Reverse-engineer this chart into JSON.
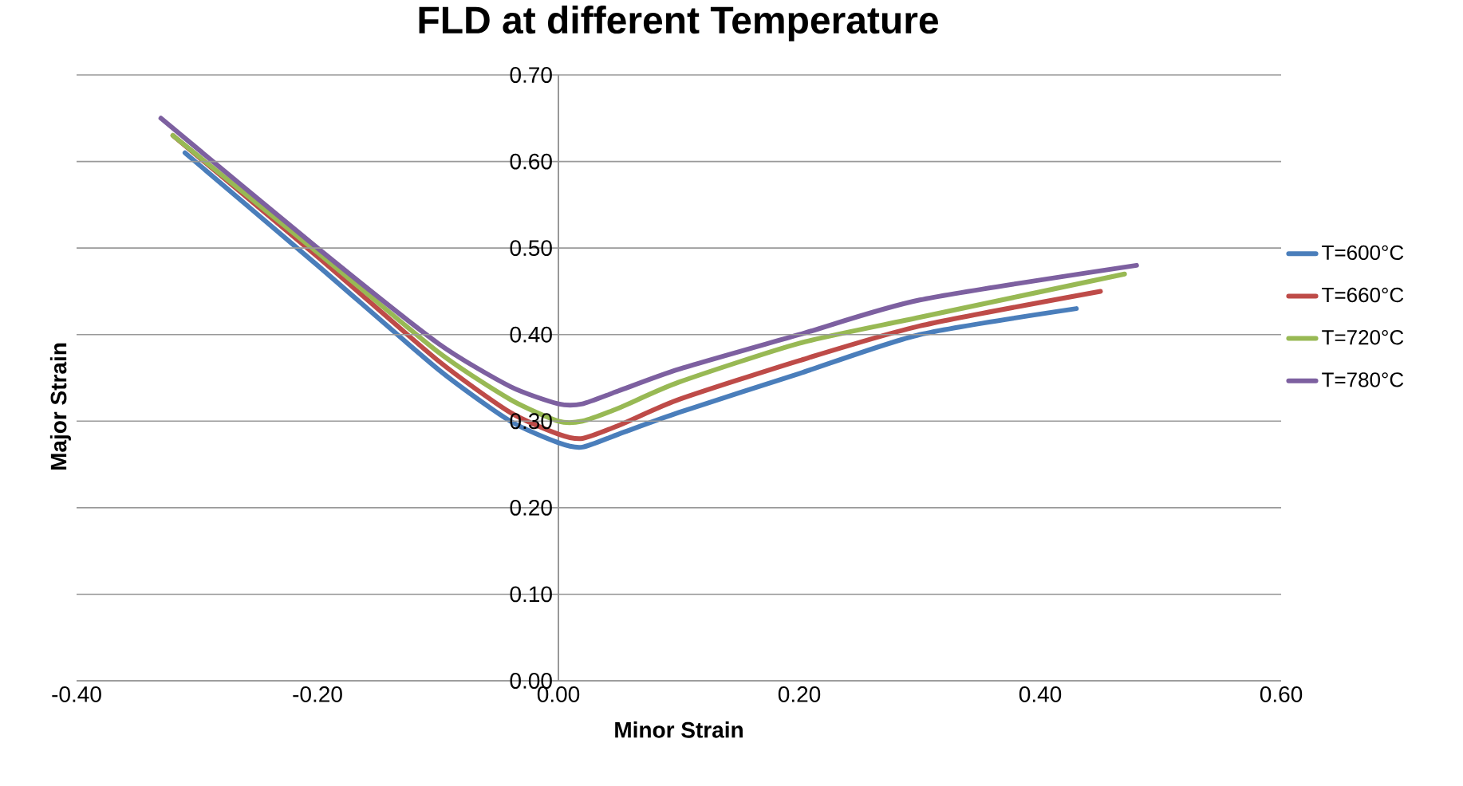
{
  "chart_data": {
    "type": "line",
    "title": "FLD at different Temperature",
    "xlabel": "Minor Strain",
    "ylabel": "Major Strain",
    "xlim": [
      -0.4,
      0.6
    ],
    "xticks": [
      {
        "value": -0.4,
        "label": "-0.40"
      },
      {
        "value": -0.2,
        "label": "-0.20"
      },
      {
        "value": 0,
        "label": "0.00"
      },
      {
        "value": 0.2,
        "label": "0.20"
      },
      {
        "value": 0.4,
        "label": "0.40"
      },
      {
        "value": 0.6,
        "label": "0.60"
      }
    ],
    "ylim": [
      0,
      0.7
    ],
    "yticks": [
      {
        "value": 0,
        "label": "0.00"
      },
      {
        "value": 0.1,
        "label": "0.10"
      },
      {
        "value": 0.2,
        "label": "0.20"
      },
      {
        "value": 0.3,
        "label": "0.30"
      },
      {
        "value": 0.4,
        "label": "0.40"
      },
      {
        "value": 0.5,
        "label": "0.50"
      },
      {
        "value": 0.6,
        "label": "0.60"
      },
      {
        "value": 0.7,
        "label": "0.70"
      }
    ],
    "grid": "y",
    "legend": "right",
    "marker": "none",
    "line_style": "solid",
    "series": [
      {
        "name": "T=600°C",
        "color": "#4a7ebb",
        "x": [
          -0.31,
          -0.2,
          -0.1,
          -0.04,
          0,
          0.02,
          0.05,
          0.1,
          0.2,
          0.3,
          0.43
        ],
        "values": [
          0.61,
          0.48,
          0.36,
          0.3,
          0.275,
          0.27,
          0.285,
          0.31,
          0.355,
          0.4,
          0.43
        ]
      },
      {
        "name": "T=660°C",
        "color": "#be4b48",
        "x": [
          -0.32,
          -0.2,
          -0.1,
          -0.04,
          0,
          0.02,
          0.05,
          0.1,
          0.2,
          0.3,
          0.45
        ],
        "values": [
          0.63,
          0.49,
          0.37,
          0.31,
          0.285,
          0.28,
          0.295,
          0.325,
          0.37,
          0.41,
          0.45
        ]
      },
      {
        "name": "T=720°C",
        "color": "#98b954",
        "x": [
          -0.32,
          -0.2,
          -0.1,
          -0.04,
          0,
          0.02,
          0.05,
          0.1,
          0.2,
          0.3,
          0.47
        ],
        "values": [
          0.63,
          0.495,
          0.38,
          0.325,
          0.3,
          0.3,
          0.315,
          0.345,
          0.39,
          0.42,
          0.47
        ]
      },
      {
        "name": "T=780°C",
        "color": "#7d60a0",
        "x": [
          -0.33,
          -0.2,
          -0.1,
          -0.04,
          0,
          0.02,
          0.05,
          0.1,
          0.2,
          0.3,
          0.48
        ],
        "values": [
          0.65,
          0.5,
          0.39,
          0.34,
          0.32,
          0.32,
          0.335,
          0.36,
          0.4,
          0.44,
          0.48
        ]
      }
    ]
  }
}
